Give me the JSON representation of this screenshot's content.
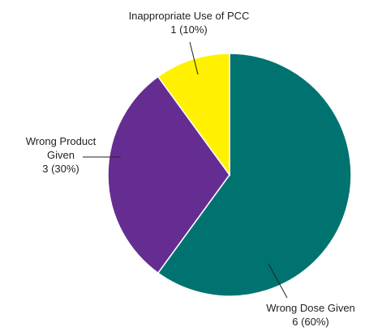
{
  "chart_data": {
    "type": "pie",
    "title": "",
    "start_angle_deg": 0,
    "direction": "clockwise",
    "slices": [
      {
        "label_lines": [
          "Wrong Dose Given"
        ],
        "value_text": "6 (60%)",
        "value": 6,
        "percent": 60,
        "color": "#007370",
        "label_side": "bottom-right"
      },
      {
        "label_lines": [
          "Wrong Product",
          "Given"
        ],
        "value_text": "3 (30%)",
        "value": 3,
        "percent": 30,
        "color": "#652D91",
        "label_side": "left"
      },
      {
        "label_lines": [
          "Inappropriate Use of PCC"
        ],
        "value_text": "1 (10%)",
        "value": 1,
        "percent": 10,
        "color": "#FFF100",
        "label_side": "top"
      }
    ]
  }
}
